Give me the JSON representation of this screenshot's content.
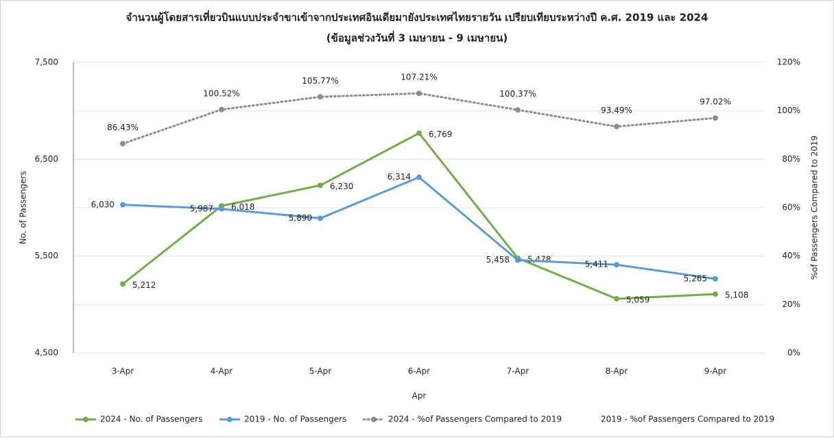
{
  "chart_data": {
    "type": "line",
    "title": "จำนวนผู้โดยสารเที่ยวบินแบบประจำขาเข้าจากประเทศอินเดียมายังประเทศไทยรายวัน เปรียบเทียบระหว่างปี ค.ศ. 2019 และ 2024",
    "subtitle": "(ข้อมูลช่วงวันที่ 3 เมษายน - 9 เมษายน)",
    "x_label": "Apr",
    "y_label": "No. of Passengers",
    "y2_label": "%of Passengers Compared to 2019",
    "categories": [
      "3-Apr",
      "4-Apr",
      "5-Apr",
      "6-Apr",
      "7-Apr",
      "8-Apr",
      "9-Apr"
    ],
    "ylim": [
      4500,
      7500
    ],
    "yticks": [
      {
        "value": 4500,
        "label": "4,500"
      },
      {
        "value": 5500,
        "label": "5,500"
      },
      {
        "value": 6500,
        "label": "6,500"
      },
      {
        "value": 7500,
        "label": "7,500"
      }
    ],
    "y2lim": [
      0,
      120
    ],
    "y2ticks": [
      {
        "value": 0,
        "label": "0%"
      },
      {
        "value": 20,
        "label": "20%"
      },
      {
        "value": 40,
        "label": "40%"
      },
      {
        "value": 60,
        "label": "60%"
      },
      {
        "value": 80,
        "label": "80%"
      },
      {
        "value": 100,
        "label": "100%"
      },
      {
        "value": 120,
        "label": "120%"
      }
    ],
    "grid": true,
    "legend": "bottom",
    "series": [
      {
        "name": "2024 - No. of Passengers",
        "color": "#70ad47",
        "values": [
          5212,
          6018,
          6230,
          6769,
          5478,
          5059,
          5108
        ],
        "value_labels": [
          "5,212",
          "6,018",
          "6,230",
          "6,769",
          "5,478",
          "5,059",
          "5,108"
        ]
      },
      {
        "name": "2019 - No. of Passengers",
        "color": "#5b9bd5",
        "values": [
          6030,
          5987,
          5890,
          6314,
          5458,
          5411,
          5265
        ],
        "value_labels": [
          "6,030",
          "5,987",
          "5,890",
          "6,314",
          "5,458",
          "5,411",
          "5,265"
        ]
      },
      {
        "name": "2024 - %of Passengers Compared to 2019",
        "color": "#8c8c8c",
        "axis": "y2",
        "dash": true,
        "values": [
          86.43,
          100.52,
          105.77,
          107.21,
          100.37,
          93.49,
          97.02
        ],
        "value_labels": [
          "86.43%",
          "100.52%",
          "105.77%",
          "107.21%",
          "100.37%",
          "93.49%",
          "97.02%"
        ]
      },
      {
        "name": "2019 - %of Passengers Compared to 2019",
        "color": null,
        "axis": "y2",
        "values": [
          null,
          null,
          null,
          null,
          null,
          null,
          null
        ]
      }
    ]
  }
}
